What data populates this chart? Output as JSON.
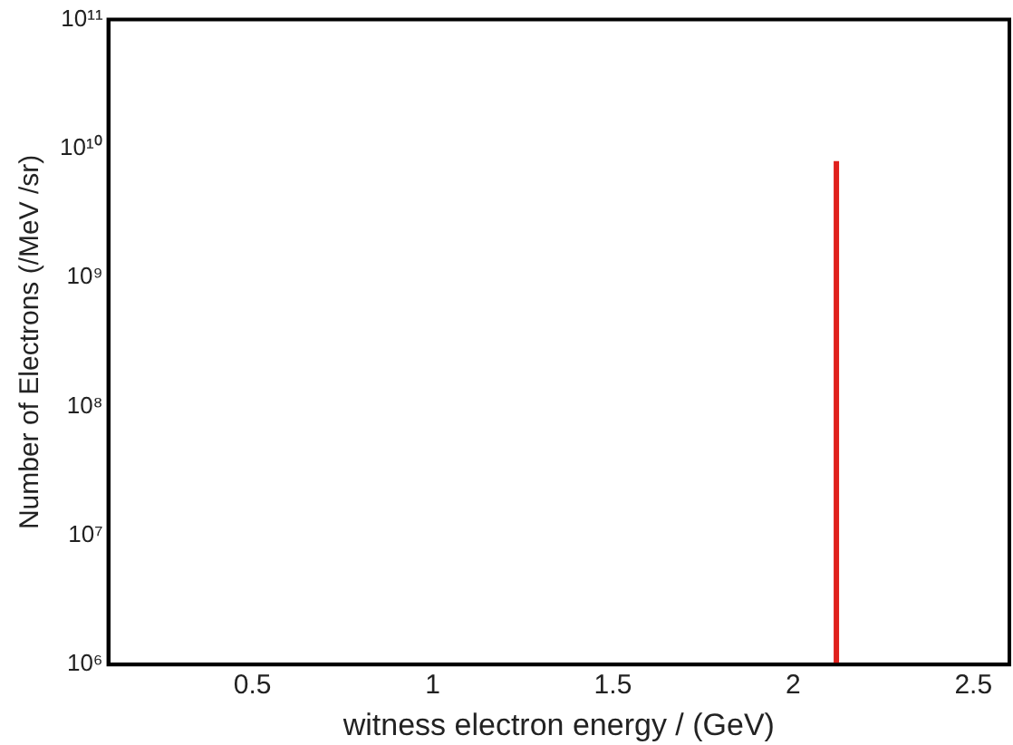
{
  "chart_data": {
    "type": "line",
    "xlabel": "witness electron energy / (GeV)",
    "ylabel": "Number of Electrons (/MeV /sr)",
    "series": [
      {
        "color": "#e0201c",
        "x": [
          2.12,
          2.12
        ],
        "values": [
          1000000,
          8000000000
        ]
      }
    ],
    "xlim": [
      0.1,
      2.6
    ],
    "xticks": [
      0.5,
      1,
      1.5,
      2,
      2.5
    ],
    "ylim": [
      1000000,
      100000000000
    ],
    "yticks": [
      {
        "value": 1000000,
        "label": "10⁶"
      },
      {
        "value": 10000000,
        "label": "10⁷"
      },
      {
        "value": 100000000,
        "label": "10⁸"
      },
      {
        "value": 1000000000,
        "label": "10⁹"
      },
      {
        "value": 10000000000,
        "label": "10¹⁰"
      },
      {
        "value": 100000000000,
        "label": "10¹¹"
      }
    ],
    "log": "y",
    "grid": false,
    "legend": false,
    "marker": "none",
    "line_style": "solid"
  }
}
